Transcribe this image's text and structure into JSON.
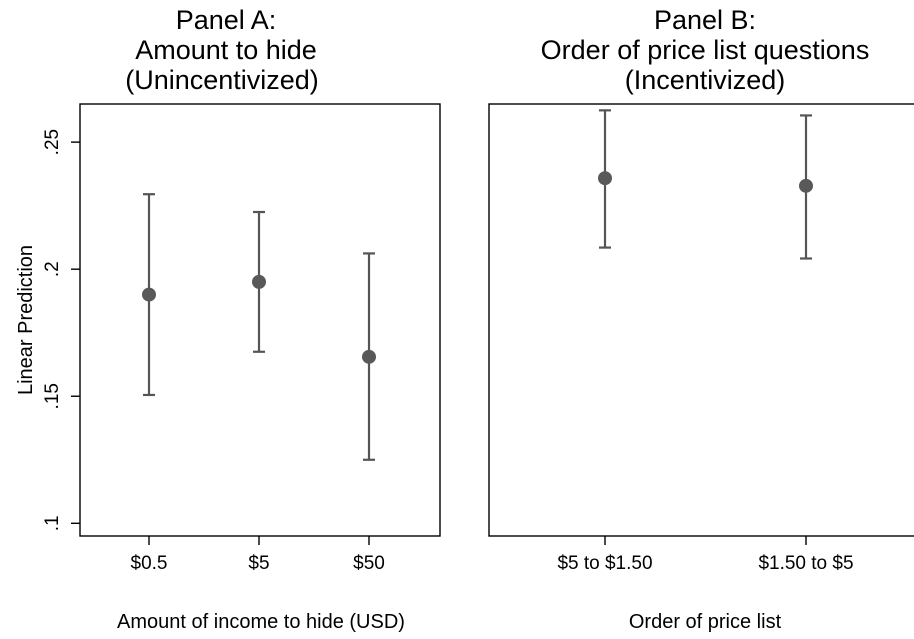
{
  "chart_data": [
    {
      "type": "scatter",
      "title": [
        "Panel A:",
        "Amount to hide",
        "(Unincentivized)"
      ],
      "xlabel": "Amount of income to hide (USD)",
      "ylabel": "Linear Prediction",
      "ylim": [
        0.095,
        0.265
      ],
      "yticks": [
        0.1,
        0.15,
        0.2,
        0.25
      ],
      "ytick_labels": [
        ".1",
        ".15",
        ".2",
        ".25"
      ],
      "categories": [
        "$0.5",
        "$5",
        "$50"
      ],
      "values": [
        0.19,
        0.195,
        0.1655
      ],
      "ci_low": [
        0.1505,
        0.1675,
        0.125
      ],
      "ci_high": [
        0.2295,
        0.2225,
        0.2062
      ],
      "grid": false,
      "color": "#595959"
    },
    {
      "type": "scatter",
      "title": [
        "Panel B:",
        "Order of price list questions",
        "(Incentivized)"
      ],
      "xlabel": "Order of price list",
      "ylabel": "",
      "ylim": [
        0.095,
        0.265
      ],
      "categories": [
        "$5 to $1.50",
        "$1.50 to $5"
      ],
      "values": [
        0.2358,
        0.2328
      ],
      "ci_low": [
        0.2085,
        0.2042
      ],
      "ci_high": [
        0.2625,
        0.2605
      ],
      "grid": false,
      "color": "#595959"
    }
  ]
}
